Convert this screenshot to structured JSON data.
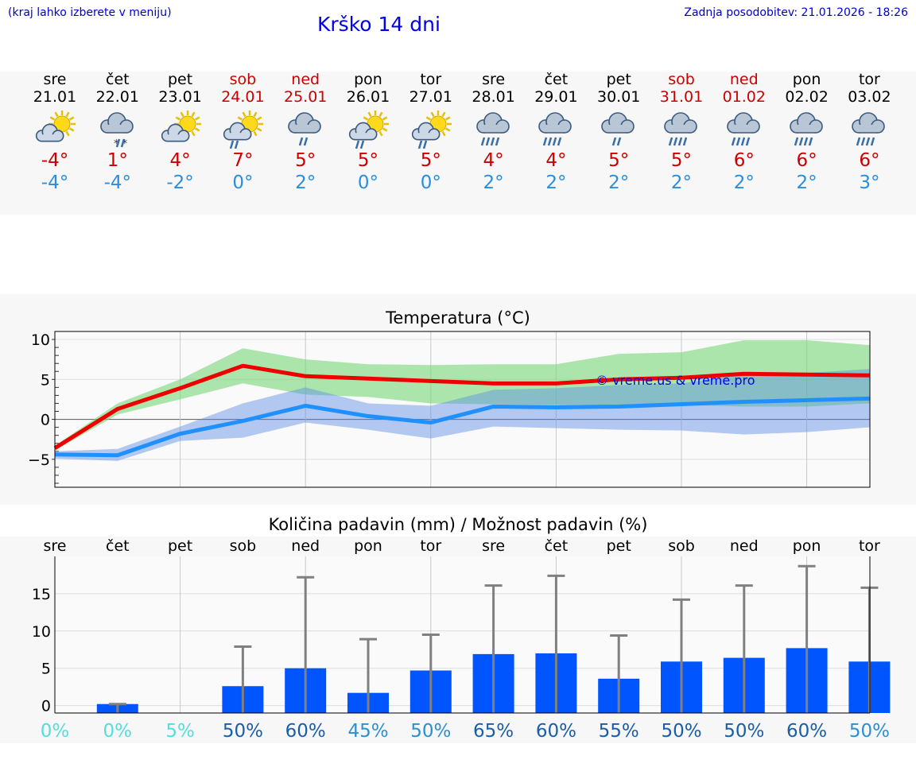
{
  "header": {
    "hint": "(kraj lahko izberete v meniju)",
    "title": "Krško 14 dni",
    "updated": "Zadnja posodobitev: 21.01.2026 - 18:26"
  },
  "forecast": [
    {
      "day": "sre",
      "date": "21.01",
      "icon": "sun-cloud-icon",
      "tmax": "-4°",
      "tmin": "-4°",
      "weekend": false
    },
    {
      "day": "čet",
      "date": "22.01",
      "icon": "cloud-snow-icon",
      "tmax": "1°",
      "tmin": "-4°",
      "weekend": false
    },
    {
      "day": "pet",
      "date": "23.01",
      "icon": "sun-cloud-icon",
      "tmax": "4°",
      "tmin": "-2°",
      "weekend": false
    },
    {
      "day": "sob",
      "date": "24.01",
      "icon": "sun-cloud-rain-icon",
      "tmax": "7°",
      "tmin": "0°",
      "weekend": true
    },
    {
      "day": "ned",
      "date": "25.01",
      "icon": "cloud-light-rain-icon",
      "tmax": "5°",
      "tmin": "2°",
      "weekend": true
    },
    {
      "day": "pon",
      "date": "26.01",
      "icon": "sun-cloud-rain-icon",
      "tmax": "5°",
      "tmin": "0°",
      "weekend": false
    },
    {
      "day": "tor",
      "date": "27.01",
      "icon": "sun-cloud-rain-icon",
      "tmax": "5°",
      "tmin": "0°",
      "weekend": false
    },
    {
      "day": "sre",
      "date": "28.01",
      "icon": "cloud-rain-icon",
      "tmax": "4°",
      "tmin": "2°",
      "weekend": false
    },
    {
      "day": "čet",
      "date": "29.01",
      "icon": "cloud-rain-icon",
      "tmax": "4°",
      "tmin": "2°",
      "weekend": false
    },
    {
      "day": "pet",
      "date": "30.01",
      "icon": "cloud-light-rain-icon",
      "tmax": "5°",
      "tmin": "2°",
      "weekend": false
    },
    {
      "day": "sob",
      "date": "31.01",
      "icon": "cloud-rain-icon",
      "tmax": "5°",
      "tmin": "2°",
      "weekend": true
    },
    {
      "day": "ned",
      "date": "01.02",
      "icon": "cloud-rain-icon",
      "tmax": "6°",
      "tmin": "2°",
      "weekend": true
    },
    {
      "day": "pon",
      "date": "02.02",
      "icon": "cloud-rain-icon",
      "tmax": "6°",
      "tmin": "2°",
      "weekend": false
    },
    {
      "day": "tor",
      "date": "03.02",
      "icon": "cloud-rain-icon",
      "tmax": "6°",
      "tmin": "3°",
      "weekend": false
    }
  ],
  "chart_data": [
    {
      "type": "line",
      "title": "Temperatura (°C)",
      "ylim": [
        -8.5,
        11
      ],
      "yticks": [
        10,
        5,
        0,
        -5
      ],
      "ytick_labels": [
        "10",
        "5",
        "0",
        "−5"
      ],
      "watermark": "© vreme.us & vreme.pro",
      "x": [
        0,
        1,
        2,
        3,
        4,
        5,
        6,
        7,
        8,
        9,
        10,
        11,
        12,
        13
      ],
      "series": [
        {
          "name": "max",
          "color": "#ee0000",
          "values": [
            -3.6,
            1.3,
            3.9,
            6.7,
            5.4,
            5.1,
            4.8,
            4.5,
            4.5,
            5.0,
            5.2,
            5.7,
            5.6,
            5.5
          ]
        },
        {
          "name": "min",
          "color": "#2090ff",
          "values": [
            -4.4,
            -4.5,
            -1.8,
            -0.2,
            1.7,
            0.4,
            -0.4,
            1.6,
            1.5,
            1.6,
            1.9,
            2.2,
            2.4,
            2.6
          ]
        },
        {
          "name": "max-range-low",
          "values": [
            -3.9,
            0.6,
            2.5,
            4.5,
            3.1,
            2.8,
            2.0,
            1.9,
            1.8,
            1.8,
            1.8,
            1.6,
            1.6,
            2.0
          ]
        },
        {
          "name": "max-range-high",
          "values": [
            -3.3,
            2.0,
            5.0,
            8.9,
            7.5,
            6.9,
            6.8,
            6.9,
            6.9,
            8.2,
            8.4,
            9.9,
            9.9,
            9.3
          ]
        },
        {
          "name": "min-range-low",
          "values": [
            -4.9,
            -5.2,
            -2.7,
            -2.3,
            -0.4,
            -1.3,
            -2.4,
            -0.9,
            -1.1,
            -1.3,
            -1.4,
            -1.9,
            -1.6,
            -1.0
          ]
        },
        {
          "name": "min-range-high",
          "values": [
            -4.0,
            -3.7,
            -0.9,
            2.0,
            4.0,
            2.0,
            1.7,
            3.7,
            3.9,
            4.3,
            4.5,
            5.6,
            5.8,
            6.3
          ]
        }
      ]
    },
    {
      "type": "bar",
      "title": "Količina padavin (mm) / Možnost padavin (%)",
      "ylim": [
        -1,
        20
      ],
      "yticks": [
        15,
        10,
        5,
        0
      ],
      "categories": [
        "sre",
        "čet",
        "pet",
        "sob",
        "ned",
        "pon",
        "tor",
        "sre",
        "čet",
        "pet",
        "sob",
        "ned",
        "pon",
        "tor"
      ],
      "values": [
        0,
        0.2,
        0,
        2.6,
        5.0,
        1.7,
        4.7,
        6.9,
        7.0,
        3.6,
        5.9,
        6.4,
        7.7,
        5.9
      ],
      "max_values": [
        0,
        0.2,
        0,
        7.9,
        17.2,
        8.9,
        9.5,
        16.1,
        17.4,
        9.4,
        14.2,
        16.1,
        18.7,
        15.8
      ],
      "chance": [
        "0%",
        "0%",
        "5%",
        "50%",
        "60%",
        "45%",
        "50%",
        "65%",
        "60%",
        "55%",
        "50%",
        "50%",
        "60%",
        "50%"
      ],
      "chance_colors": [
        "#55dddd",
        "#55dddd",
        "#55dddd",
        "#1a5ea8",
        "#1a5ea8",
        "#2b8fd0",
        "#2b8fd0",
        "#1a5ea8",
        "#1a5ea8",
        "#1a5ea8",
        "#1a5ea8",
        "#1a5ea8",
        "#1a5ea8",
        "#2b8fd0"
      ],
      "bar_color": "#0055ff"
    }
  ]
}
